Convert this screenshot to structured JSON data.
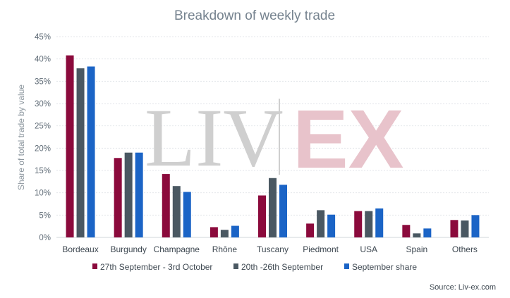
{
  "chart_data": {
    "type": "bar",
    "title": "Breakdown of weekly trade",
    "xlabel": "",
    "ylabel": "Share of total trade by value",
    "ylim": [
      0,
      45
    ],
    "yticks": [
      "0%",
      "5%",
      "10%",
      "15%",
      "20%",
      "25%",
      "30%",
      "35%",
      "40%",
      "45%"
    ],
    "categories": [
      "Bordeaux",
      "Burgundy",
      "Champagne",
      "Rhône",
      "Tuscany",
      "Piedmont",
      "USA",
      "Spain",
      "Others"
    ],
    "series": [
      {
        "name": "27th September - 3rd October",
        "color": "#8b0a3c",
        "values": [
          40.8,
          17.8,
          14.2,
          2.3,
          9.4,
          3.1,
          5.9,
          2.8,
          3.9
        ]
      },
      {
        "name": "20th -26th September",
        "color": "#4a5862",
        "values": [
          37.9,
          19.0,
          11.5,
          1.7,
          13.3,
          6.1,
          5.9,
          0.9,
          3.8
        ]
      },
      {
        "name": "September share",
        "color": "#1b64c6",
        "values": [
          38.3,
          19.0,
          10.2,
          2.6,
          11.8,
          5.1,
          6.5,
          2.0,
          5.0
        ]
      }
    ],
    "grid": true,
    "legend": "bottom",
    "watermark": {
      "left": "LIV",
      "right": "EX"
    },
    "source": "Source: Liv-ex.com"
  }
}
